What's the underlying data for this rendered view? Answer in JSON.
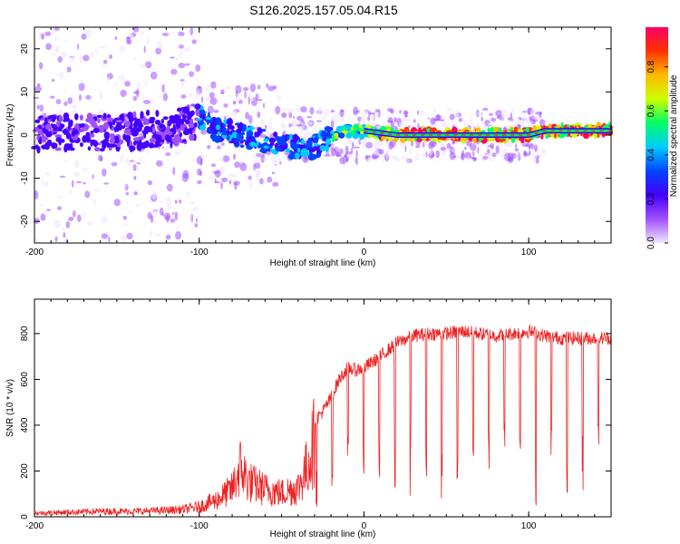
{
  "title": "S126.2025.157.05.04.R15",
  "chart_data": [
    {
      "type": "heatmap",
      "name": "spectrogram",
      "xlabel": "Height of straight line (km)",
      "ylabel": "Frequency (Hz)",
      "xlim": [
        -200,
        150
      ],
      "ylim": [
        -25,
        25
      ],
      "xticks": [
        -200,
        -100,
        0,
        100
      ],
      "yticks": [
        -20,
        -10,
        0,
        10,
        20
      ],
      "colorbar": {
        "label": "Normalized spectral amplitude",
        "range": [
          0,
          1
        ],
        "ticks": [
          "0.0",
          "0.2",
          "0.4",
          "0.6",
          "0.8"
        ],
        "colors": [
          "#f0e6ff",
          "#a050ff",
          "#4400ff",
          "#0044ff",
          "#00ccff",
          "#00ff66",
          "#ccff00",
          "#ffbb00",
          "#ff3300",
          "#ff0066"
        ]
      },
      "trace": {
        "description_points": [
          [
            -200,
            0.5
          ],
          [
            -150,
            0.5
          ],
          [
            -110,
            2.0
          ],
          [
            -100,
            4.0
          ],
          [
            -90,
            1.5
          ],
          [
            -70,
            -0.5
          ],
          [
            -45,
            -2.5
          ],
          [
            -35,
            -4.0
          ],
          [
            -25,
            -1.5
          ],
          [
            -15,
            1.0
          ],
          [
            0,
            1.0
          ],
          [
            20,
            0.0
          ],
          [
            60,
            0.0
          ],
          [
            100,
            0.0
          ],
          [
            110,
            1.0
          ],
          [
            150,
            1.0
          ]
        ]
      }
    },
    {
      "type": "line",
      "name": "snr",
      "xlabel": "Height of straight line (km)",
      "ylabel": "SNR (10 * v/v)",
      "xlim": [
        -200,
        150
      ],
      "ylim": [
        0,
        950
      ],
      "xticks": [
        -200,
        -100,
        0,
        100
      ],
      "yticks": [
        0,
        200,
        400,
        600,
        800
      ],
      "color": "#ee2222",
      "series": [
        {
          "x": [
            -200,
            -180,
            -160,
            -140,
            -120,
            -110,
            -100,
            -90,
            -80,
            -75,
            -70,
            -60,
            -50,
            -40,
            -35,
            -30,
            -25,
            -20,
            -15,
            -10,
            -5,
            0,
            10,
            20,
            30,
            40,
            50,
            60,
            70,
            80,
            90,
            100,
            110,
            120,
            130,
            140,
            150
          ],
          "values": [
            20,
            25,
            30,
            30,
            35,
            40,
            55,
            90,
            150,
            270,
            190,
            150,
            130,
            160,
            260,
            420,
            460,
            520,
            600,
            650,
            640,
            650,
            700,
            760,
            790,
            800,
            800,
            810,
            800,
            790,
            800,
            810,
            790,
            780,
            780,
            780,
            780
          ]
        }
      ]
    }
  ]
}
